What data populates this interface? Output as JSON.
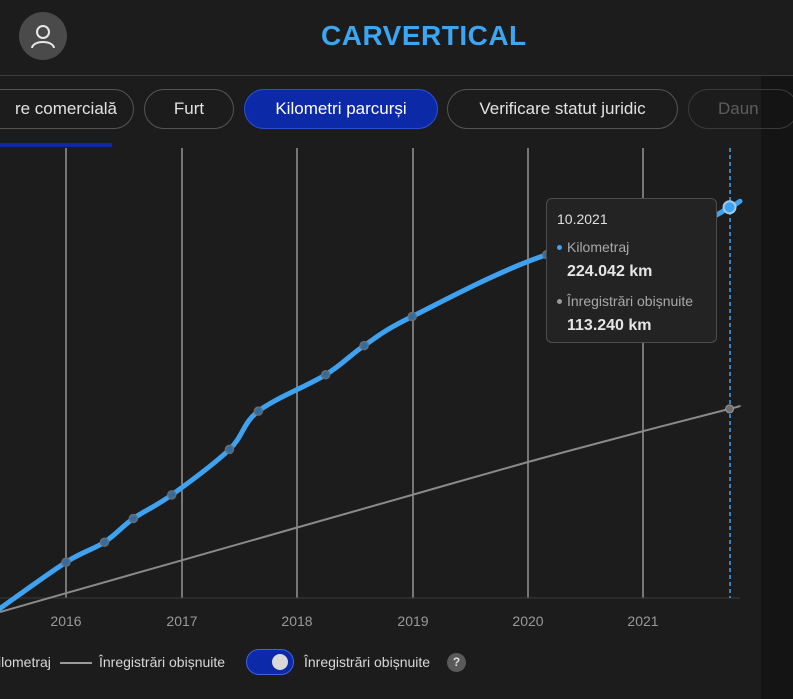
{
  "header": {
    "logo": "CARVERTICAL",
    "profile_icon": "user-icon",
    "menu_icon": "more-vertical-icon"
  },
  "tabs": [
    {
      "label": "re comercială"
    },
    {
      "label": "Furt"
    },
    {
      "label": "Kilometri parcurși",
      "active": true
    },
    {
      "label": "Verificare statut juridic"
    },
    {
      "label": "Daun"
    }
  ],
  "chart_data": {
    "type": "line",
    "x_ticks": [
      "2016",
      "2017",
      "2018",
      "2019",
      "2020",
      "2021"
    ],
    "y_unit": "km",
    "series": [
      {
        "name": "Kilometraj",
        "color": "#3fa2f0",
        "points": [
          {
            "date": "07.2015",
            "km": 8000
          },
          {
            "date": "01.2016",
            "km": 29000
          },
          {
            "date": "05.2016",
            "km": 40000
          },
          {
            "date": "08.2016",
            "km": 53000
          },
          {
            "date": "12.2016",
            "km": 66000
          },
          {
            "date": "06.2017",
            "km": 91000
          },
          {
            "date": "09.2017",
            "km": 112000
          },
          {
            "date": "04.2018",
            "km": 132000
          },
          {
            "date": "08.2018",
            "km": 148000
          },
          {
            "date": "01.2019",
            "km": 164000
          },
          {
            "date": "03.2020",
            "km": 198000
          },
          {
            "date": "06.2021",
            "km": 215000
          },
          {
            "date": "10.2021",
            "km": 224042
          }
        ]
      },
      {
        "name": "Înregistrări obișnuite",
        "color": "#8a8a8a",
        "points": [
          {
            "date": "07.2015",
            "km": 6000
          },
          {
            "date": "01.2016",
            "km": 12000
          },
          {
            "date": "01.2017",
            "km": 30000
          },
          {
            "date": "01.2018",
            "km": 48000
          },
          {
            "date": "01.2019",
            "km": 66000
          },
          {
            "date": "01.2020",
            "km": 84000
          },
          {
            "date": "01.2021",
            "km": 101000
          },
          {
            "date": "10.2021",
            "km": 113240
          }
        ]
      }
    ],
    "tooltip": {
      "date": "10.2021",
      "rows": [
        {
          "label": "Kilometraj",
          "value": "224.042 km",
          "color": "#3fa2f0"
        },
        {
          "label": "Înregistrări obișnuite",
          "value": "113.240 km",
          "color": "#9a9a9a"
        }
      ]
    }
  },
  "legend": {
    "kilometraj_label": "ilometraj",
    "regular_label": "Înregistrări obișnuite",
    "toggle_label": "Înregistrări obișnuite",
    "toggle_on": true,
    "help": "?"
  }
}
